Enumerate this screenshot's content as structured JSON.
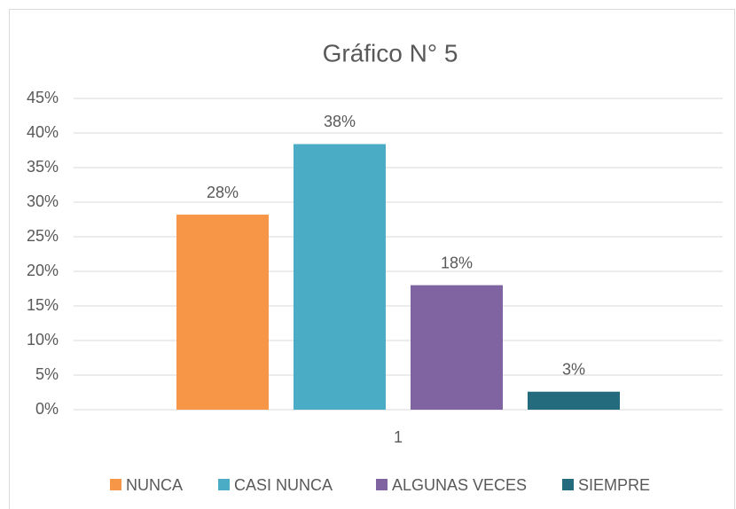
{
  "chart_data": {
    "type": "bar",
    "title": "Gráfico N° 5",
    "categories": [
      "1"
    ],
    "series": [
      {
        "name": "NUNCA",
        "color": "#f79646",
        "values": [
          28.2
        ],
        "value_labels": [
          "28%"
        ]
      },
      {
        "name": "CASI NUNCA",
        "color": "#4bacc6",
        "values": [
          38.4
        ],
        "value_labels": [
          "38%"
        ]
      },
      {
        "name": "ALGUNAS VECES",
        "color": "#8064a2",
        "values": [
          18
        ],
        "value_labels": [
          "18%"
        ]
      },
      {
        "name": "SIEMPRE",
        "color": "#246b7d",
        "values": [
          2.6
        ],
        "value_labels": [
          "3%"
        ]
      }
    ],
    "ylim": [
      0,
      45
    ],
    "yticks": [
      {
        "value": 0,
        "label": "0%"
      },
      {
        "value": 5,
        "label": "5%"
      },
      {
        "value": 10,
        "label": "10%"
      },
      {
        "value": 15,
        "label": "15%"
      },
      {
        "value": 20,
        "label": "20%"
      },
      {
        "value": 25,
        "label": "25%"
      },
      {
        "value": 30,
        "label": "30%"
      },
      {
        "value": 35,
        "label": "35%"
      },
      {
        "value": 40,
        "label": "40%"
      },
      {
        "value": 45,
        "label": "45%"
      }
    ],
    "grid": true,
    "legend": "bottom"
  }
}
